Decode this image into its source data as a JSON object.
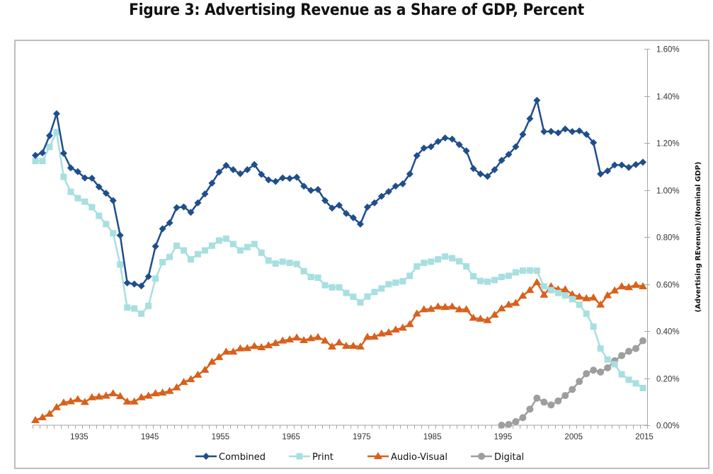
{
  "title": "Figure 3: Advertising Revenue as a Share of GDP, Percent",
  "chart_data": {
    "type": "line",
    "title": "Figure 3: Advertising Revenue as a Share of GDP, Percent",
    "xlabel": "",
    "ylabel": "(Advertising REvenue)/(Nominal GDP)",
    "y_axis_side": "right",
    "xlim": [
      1929,
      2015
    ],
    "ylim": [
      0,
      1.6
    ],
    "y_ticks": [
      0,
      0.2,
      0.4,
      0.6,
      0.8,
      1.0,
      1.2,
      1.4,
      1.6
    ],
    "y_tick_labels": [
      "0.00%",
      "0.20%",
      "0.40%",
      "0.60%",
      "0.80%",
      "1.00%",
      "1.20%",
      "1.40%",
      "1.60%"
    ],
    "x_ticks": [
      1935,
      1945,
      1955,
      1965,
      1975,
      1985,
      1995,
      2005,
      2015
    ],
    "x_tick_labels": [
      "1935",
      "1945",
      "1955",
      "1965",
      "1975",
      "1985",
      "1995",
      "2005",
      "2015"
    ],
    "grid": false,
    "legend_position": "bottom",
    "series": [
      {
        "name": "Combined",
        "color": "#1f4e8c",
        "marker": "diamond",
        "start_year": 1929,
        "values": [
          1.147,
          1.158,
          1.231,
          1.324,
          1.156,
          1.094,
          1.078,
          1.051,
          1.05,
          1.013,
          0.986,
          0.955,
          0.807,
          0.605,
          0.6,
          0.592,
          0.632,
          0.76,
          0.835,
          0.86,
          0.925,
          0.928,
          0.905,
          0.945,
          0.983,
          1.029,
          1.076,
          1.104,
          1.086,
          1.069,
          1.086,
          1.108,
          1.066,
          1.043,
          1.036,
          1.051,
          1.049,
          1.054,
          1.016,
          0.998,
          1.002,
          0.955,
          0.923,
          0.935,
          0.9,
          0.882,
          0.855,
          0.927,
          0.945,
          0.973,
          0.993,
          1.016,
          1.026,
          1.068,
          1.146,
          1.178,
          1.184,
          1.206,
          1.221,
          1.216,
          1.193,
          1.166,
          1.091,
          1.068,
          1.058,
          1.086,
          1.126,
          1.151,
          1.184,
          1.236,
          1.303,
          1.381,
          1.248,
          1.249,
          1.243,
          1.259,
          1.248,
          1.251,
          1.236,
          1.201,
          1.068,
          1.081,
          1.106,
          1.106,
          1.096,
          1.108,
          1.118
        ]
      },
      {
        "name": "Print",
        "color": "#a8dfe0",
        "marker": "square",
        "start_year": 1929,
        "values": [
          1.123,
          1.123,
          1.183,
          1.246,
          1.056,
          0.992,
          0.965,
          0.95,
          0.927,
          0.89,
          0.855,
          0.816,
          0.683,
          0.5,
          0.496,
          0.474,
          0.507,
          0.623,
          0.693,
          0.715,
          0.763,
          0.743,
          0.705,
          0.727,
          0.743,
          0.763,
          0.785,
          0.793,
          0.77,
          0.743,
          0.757,
          0.77,
          0.733,
          0.7,
          0.687,
          0.695,
          0.69,
          0.685,
          0.655,
          0.63,
          0.627,
          0.595,
          0.586,
          0.586,
          0.562,
          0.546,
          0.522,
          0.547,
          0.566,
          0.581,
          0.599,
          0.606,
          0.612,
          0.635,
          0.675,
          0.69,
          0.695,
          0.705,
          0.717,
          0.71,
          0.697,
          0.675,
          0.633,
          0.613,
          0.61,
          0.617,
          0.63,
          0.635,
          0.65,
          0.657,
          0.658,
          0.657,
          0.59,
          0.574,
          0.562,
          0.552,
          0.536,
          0.512,
          0.474,
          0.419,
          0.326,
          0.279,
          0.259,
          0.216,
          0.193,
          0.178,
          0.158
        ]
      },
      {
        "name": "Audio-Visual",
        "color": "#d9601c",
        "marker": "triangle",
        "start_year": 1929,
        "values": [
          0.021,
          0.033,
          0.048,
          0.076,
          0.096,
          0.101,
          0.11,
          0.098,
          0.118,
          0.121,
          0.125,
          0.135,
          0.123,
          0.1,
          0.1,
          0.118,
          0.125,
          0.135,
          0.138,
          0.145,
          0.16,
          0.183,
          0.195,
          0.214,
          0.235,
          0.269,
          0.289,
          0.312,
          0.312,
          0.326,
          0.327,
          0.336,
          0.331,
          0.339,
          0.349,
          0.359,
          0.364,
          0.372,
          0.361,
          0.369,
          0.374,
          0.359,
          0.334,
          0.351,
          0.337,
          0.337,
          0.334,
          0.375,
          0.376,
          0.389,
          0.394,
          0.406,
          0.414,
          0.429,
          0.474,
          0.492,
          0.494,
          0.504,
          0.502,
          0.504,
          0.492,
          0.492,
          0.456,
          0.452,
          0.446,
          0.469,
          0.496,
          0.512,
          0.519,
          0.55,
          0.574,
          0.607,
          0.554,
          0.59,
          0.577,
          0.577,
          0.556,
          0.546,
          0.539,
          0.542,
          0.512,
          0.552,
          0.572,
          0.59,
          0.586,
          0.596,
          0.59
        ]
      },
      {
        "name": "Digital",
        "color": "#9e9e9e",
        "marker": "circle",
        "start_year": 1995,
        "values": [
          0.0,
          0.003,
          0.015,
          0.032,
          0.068,
          0.115,
          0.098,
          0.086,
          0.103,
          0.126,
          0.152,
          0.186,
          0.219,
          0.234,
          0.226,
          0.244,
          0.274,
          0.296,
          0.314,
          0.326,
          0.359
        ]
      }
    ]
  }
}
